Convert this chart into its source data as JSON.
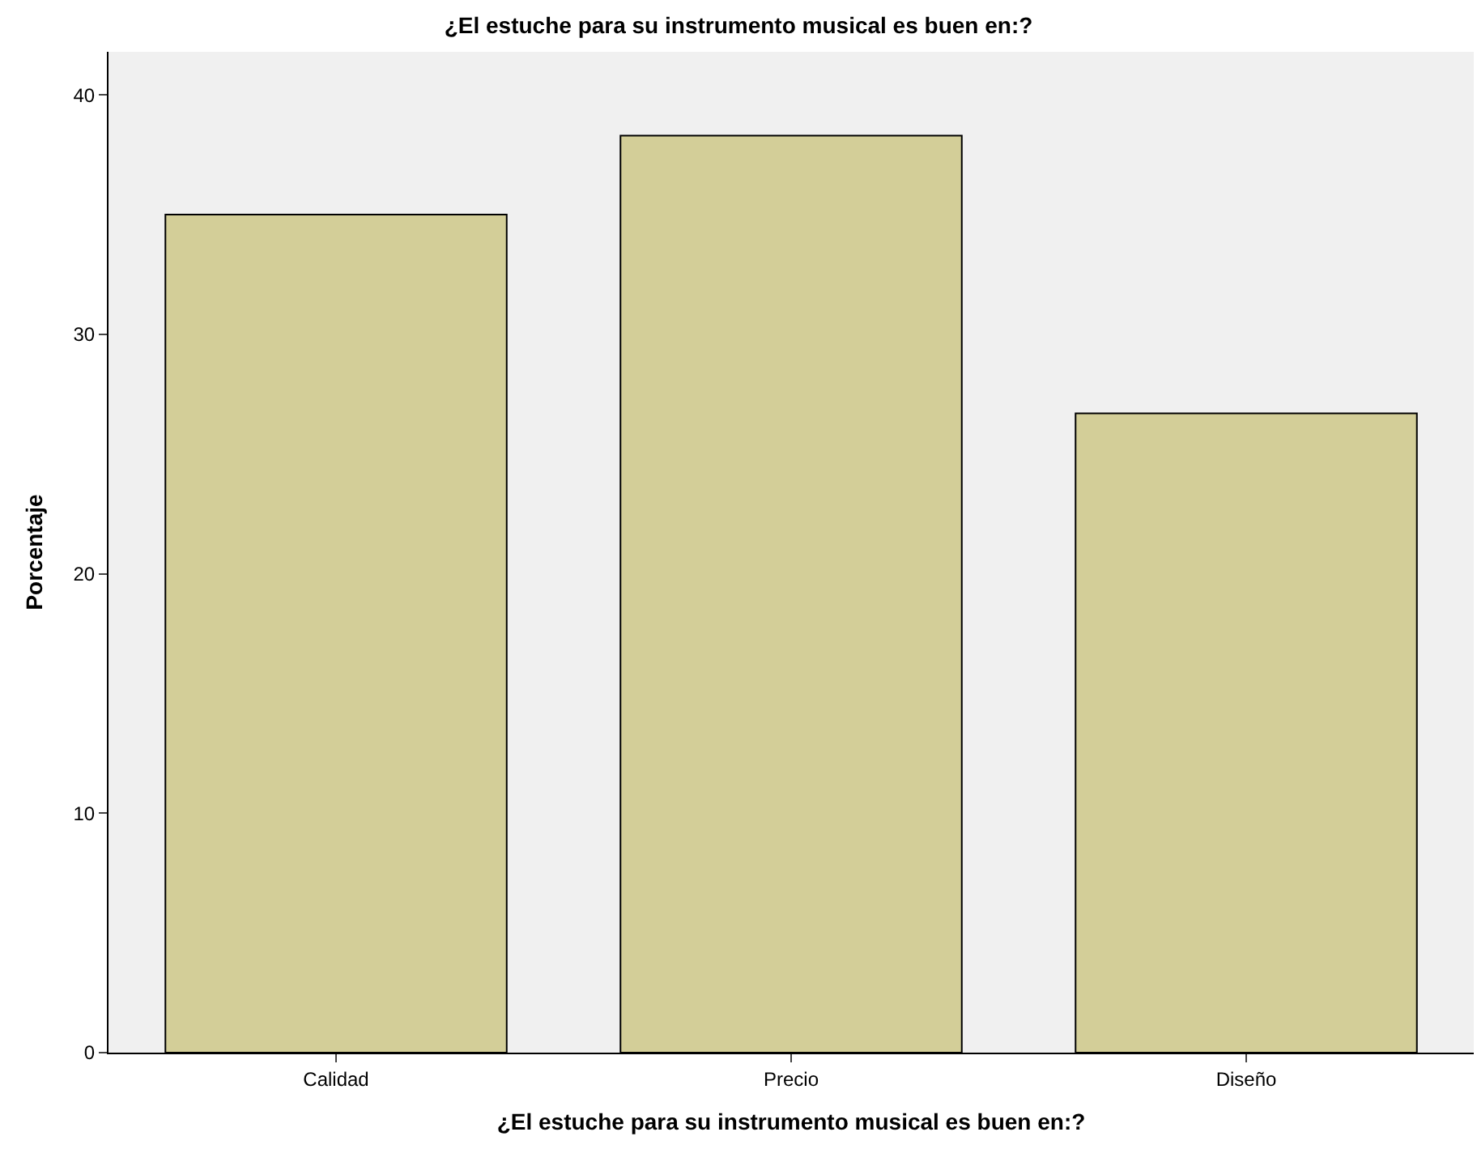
{
  "chart_data": {
    "type": "bar",
    "title": "¿El estuche para su instrumento musical es buen en:?",
    "xlabel": "¿El estuche para su instrumento musical es buen en:?",
    "ylabel": "Porcentaje",
    "categories": [
      "Calidad",
      "Precio",
      "Diseño"
    ],
    "values": [
      35.0,
      38.3,
      26.7
    ],
    "color": "#d3ce98",
    "ylim": [
      0,
      41.8
    ],
    "yticks": [
      0,
      10,
      20,
      30,
      40
    ]
  }
}
